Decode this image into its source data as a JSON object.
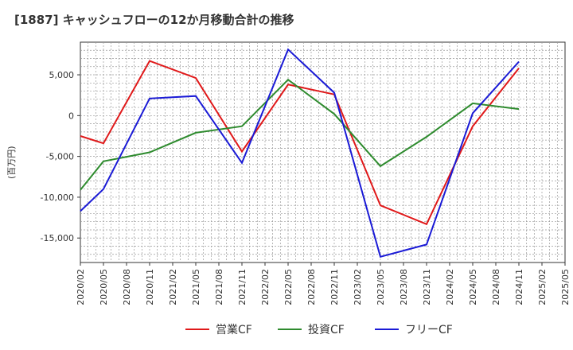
{
  "chart_data": {
    "type": "line",
    "title": "[1887]  キャッシュフローの12か月移動合計の推移",
    "ylabel": "(百万円)",
    "xlabel": "",
    "ylim": [
      -18000,
      9000
    ],
    "yticks": [
      5000,
      0,
      -5000,
      -10000,
      -15000
    ],
    "ytick_labels": [
      "5,000",
      "0",
      "-5,000",
      "-10,000",
      "-15,000"
    ],
    "categories": [
      "2020/02",
      "2020/05",
      "2020/08",
      "2020/11",
      "2021/02",
      "2021/05",
      "2021/08",
      "2021/11",
      "2022/02",
      "2022/05",
      "2022/08",
      "2022/11",
      "2023/02",
      "2023/05",
      "2023/08",
      "2023/11",
      "2024/02",
      "2024/05",
      "2024/08",
      "2024/11",
      "2025/02",
      "2025/05"
    ],
    "series": [
      {
        "name": "営業CF",
        "color": "#e0191a",
        "values": [
          -2500,
          -3400,
          null,
          6700,
          null,
          4600,
          null,
          -4400,
          null,
          3800,
          null,
          2600,
          null,
          -11000,
          null,
          -13300,
          null,
          -1300,
          null,
          5800,
          null,
          null
        ]
      },
      {
        "name": "投資CF",
        "color": "#2e8b2e",
        "values": [
          -9100,
          -5600,
          null,
          -4500,
          null,
          -2100,
          null,
          -1300,
          null,
          4400,
          null,
          200,
          null,
          -6200,
          null,
          -2600,
          null,
          1500,
          null,
          800,
          null,
          null
        ]
      },
      {
        "name": "フリーCF",
        "color": "#1a1ad6",
        "values": [
          -11700,
          -9000,
          null,
          2100,
          null,
          2400,
          null,
          -5800,
          null,
          8100,
          null,
          2800,
          null,
          -17300,
          null,
          -15800,
          null,
          300,
          null,
          6600,
          null,
          null
        ]
      }
    ],
    "legend_position": "bottom",
    "grid": true
  }
}
